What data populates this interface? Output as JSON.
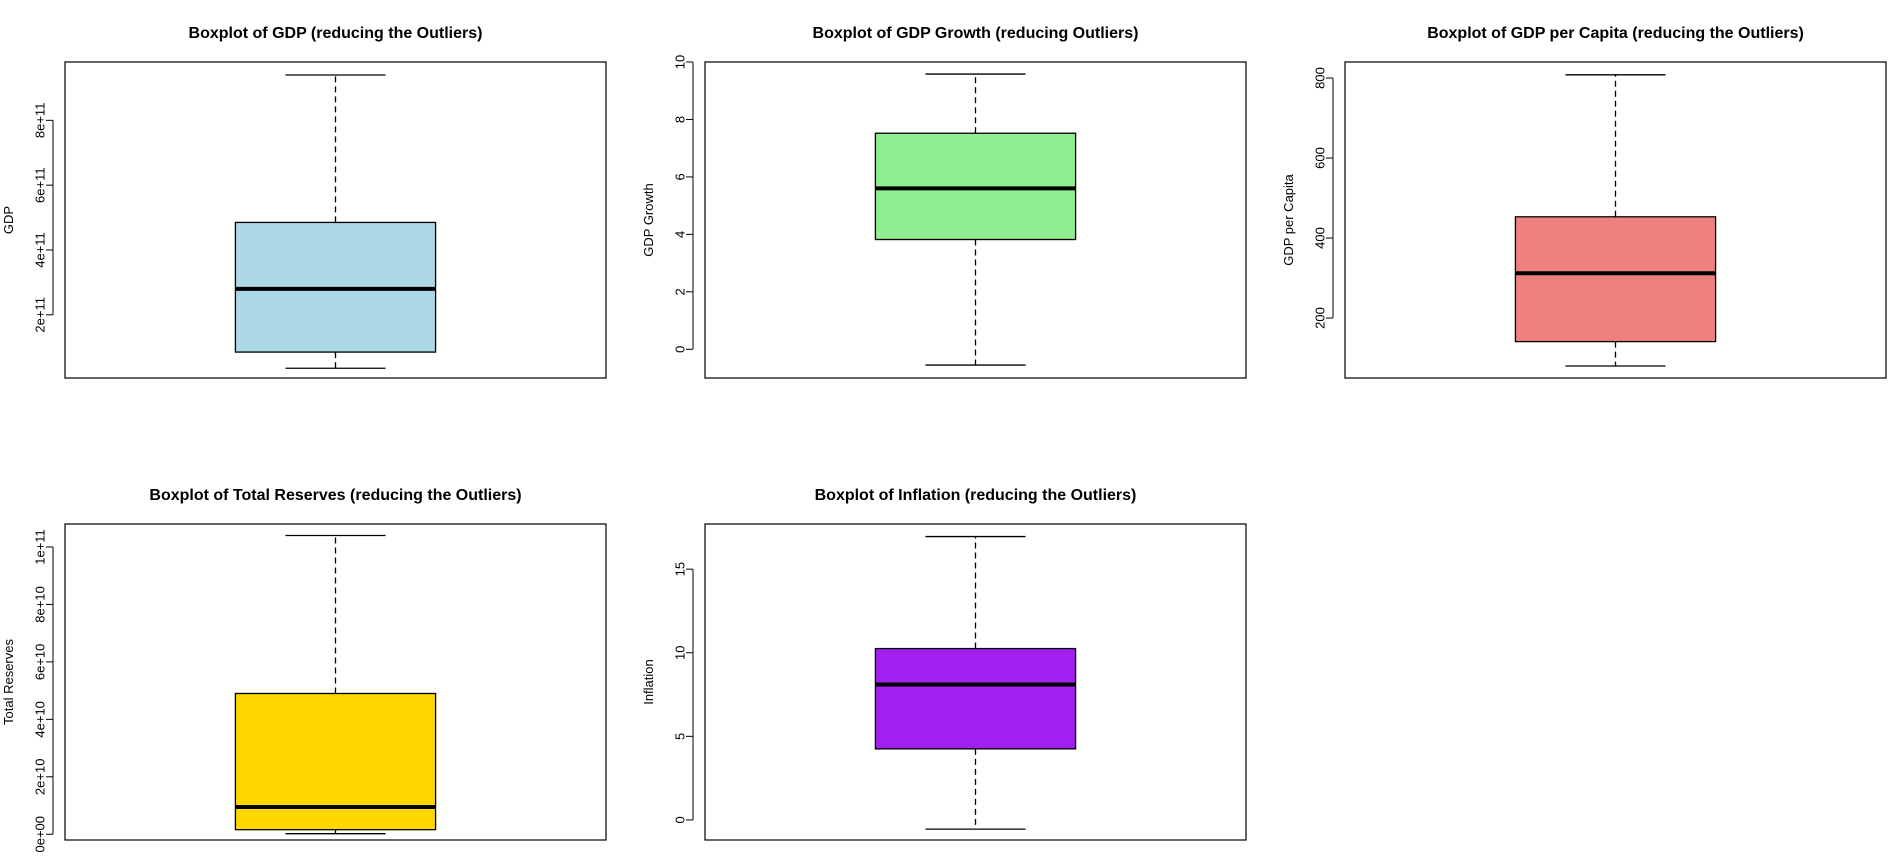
{
  "chart_data": [
    {
      "type": "boxplot",
      "title": "Boxplot of GDP (reducing the  Outliers)",
      "ylabel": "GDP",
      "color": "#add8e6",
      "ylim": [
        5000000000,
        980000000000
      ],
      "yticks": [
        200000000000,
        400000000000,
        600000000000,
        800000000000
      ],
      "ytick_labels": [
        "2e+11",
        "4e+11",
        "6e+11",
        "8e+11"
      ],
      "stats": {
        "min": 35000000000,
        "q1": 85000000000,
        "median": 280000000000,
        "q3": 485000000000,
        "max": 940000000000
      }
    },
    {
      "type": "boxplot",
      "title": "Boxplot of GDP Growth (reducing Outliers)",
      "ylabel": "GDP Growth",
      "color": "#90ee90",
      "ylim": [
        -1.0,
        10.0
      ],
      "yticks": [
        0,
        2,
        4,
        6,
        8,
        10
      ],
      "ytick_labels": [
        "0",
        "2",
        "4",
        "6",
        "8",
        "10"
      ],
      "stats": {
        "min": -0.55,
        "q1": 3.82,
        "median": 5.6,
        "q3": 7.52,
        "max": 9.58
      }
    },
    {
      "type": "boxplot",
      "title": "Boxplot of GDP per Capita (reducing the  Outliers)",
      "ylabel": "GDP per Capita",
      "color": "#f08080",
      "ylim": [
        50,
        840
      ],
      "yticks": [
        200,
        400,
        600,
        800
      ],
      "ytick_labels": [
        "200",
        "400",
        "600",
        "800"
      ],
      "stats": {
        "min": 80,
        "q1": 141,
        "median": 312,
        "q3": 453,
        "max": 808
      }
    },
    {
      "type": "boxplot",
      "title": "Boxplot of Total Reserves (reducing the  Outliers)",
      "ylabel": "Total Reserves",
      "color": "#ffd700",
      "ylim": [
        -2000000000,
        108000000000
      ],
      "yticks": [
        0,
        20000000000,
        40000000000,
        60000000000,
        80000000000,
        100000000000
      ],
      "ytick_labels": [
        "0e+00",
        "2e+10",
        "4e+10",
        "6e+10",
        "8e+10",
        "1e+11"
      ],
      "stats": {
        "min": 200000000,
        "q1": 1600000000,
        "median": 9500000000,
        "q3": 49000000000,
        "max": 104000000000
      }
    },
    {
      "type": "boxplot",
      "title": "Boxplot of Inflation (reducing the Outliers)",
      "ylabel": "Inflation",
      "color": "#a020f0",
      "ylim": [
        -1.2,
        17.7
      ],
      "yticks": [
        0,
        5,
        10,
        15
      ],
      "ytick_labels": [
        "0",
        "5",
        "10",
        "15"
      ],
      "stats": {
        "min": -0.55,
        "q1": 4.25,
        "median": 8.1,
        "q3": 10.25,
        "max": 16.95
      }
    }
  ]
}
